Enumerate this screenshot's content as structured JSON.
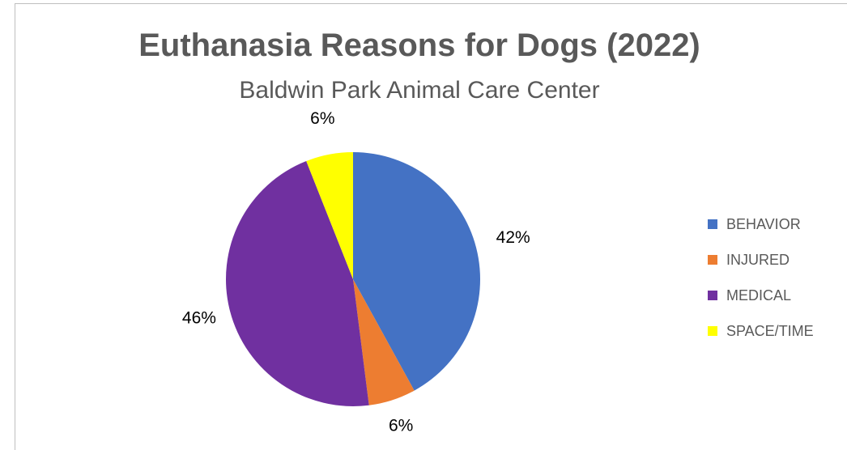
{
  "chart_data": {
    "type": "pie",
    "title": "Euthanasia Reasons for Dogs (2022)",
    "subtitle": "Baldwin Park Animal Care Center",
    "categories": [
      "BEHAVIOR",
      "INJURED",
      "MEDICAL",
      "SPACE/TIME"
    ],
    "values": [
      42,
      6,
      46,
      6
    ],
    "labels": [
      "42%",
      "6%",
      "46%",
      "6%"
    ],
    "colors": [
      "#4472C4",
      "#ED7D31",
      "#7030A0",
      "#FFFF00"
    ],
    "legend_position": "right"
  }
}
